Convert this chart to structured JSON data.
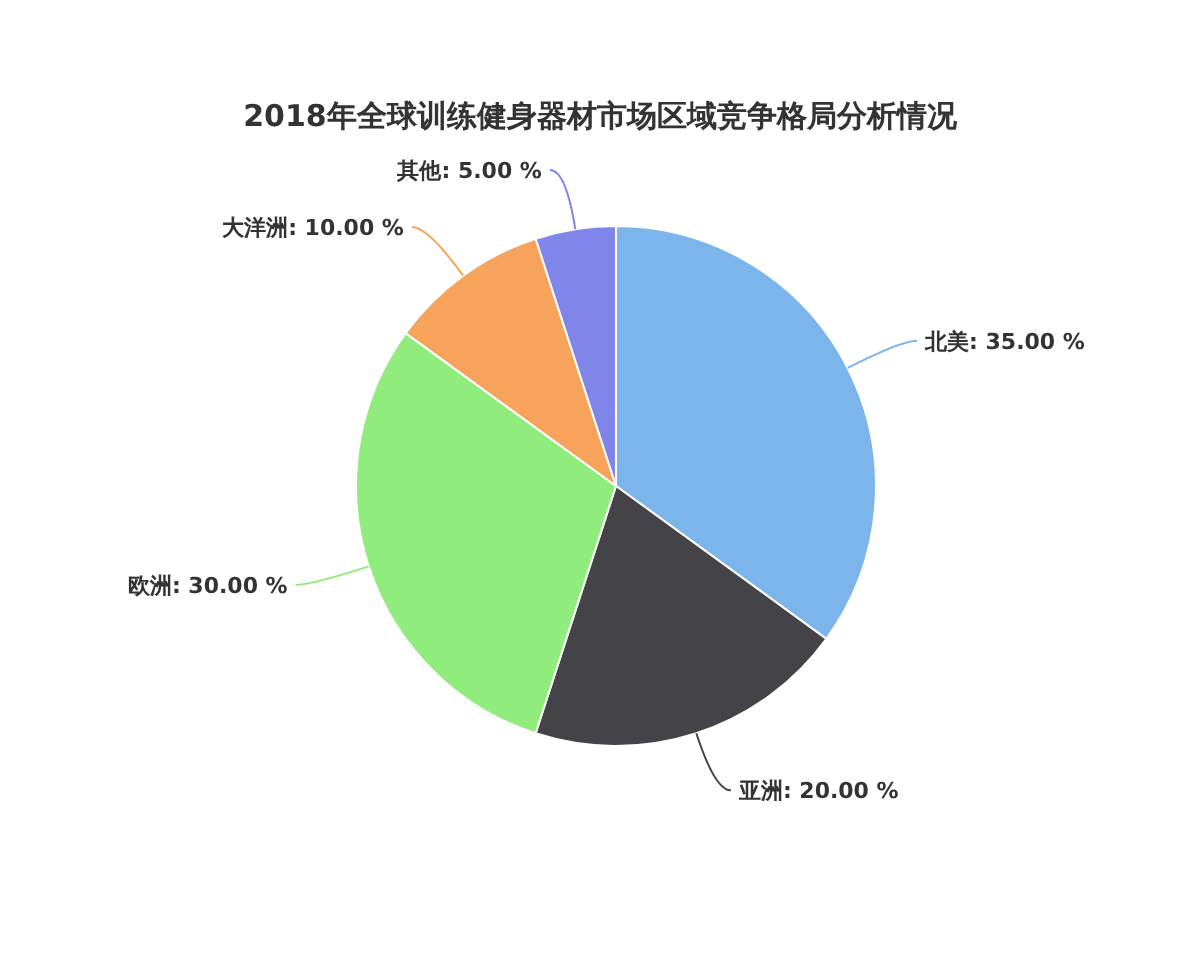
{
  "chart_data": {
    "type": "pie",
    "title": "2018年全球训练健身器材市场区域竞争格局分析情况",
    "categories": [
      "北美",
      "亚洲",
      "欧洲",
      "大洋洲",
      "其他"
    ],
    "values": [
      35,
      20,
      30,
      10,
      5
    ],
    "colors": [
      "#7cb5ec",
      "#434348",
      "#90ed7d",
      "#f7a35c",
      "#8085e9"
    ],
    "value_labels": [
      "35.00 %",
      "20.00 %",
      "30.00 %",
      "10.00 %",
      "5.00 %"
    ]
  }
}
